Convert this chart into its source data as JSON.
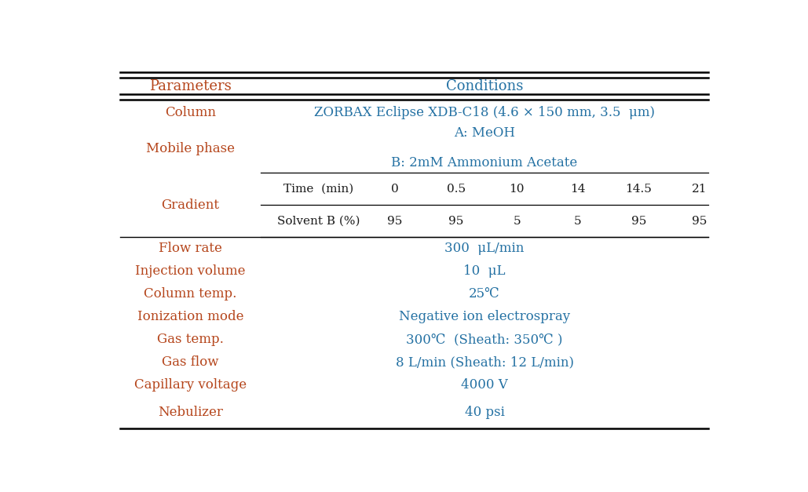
{
  "bg_color": "#ffffff",
  "param_color": "#b5451b",
  "cond_color": "#2471a3",
  "text_color": "#1a1a1a",
  "header_params": "Parameters",
  "header_cond": "Conditions",
  "rows": [
    {
      "param": "Column",
      "cond": "ZORBAX Eclipse XDB-C18 (4.6 × 150 mm, 3.5  μm)",
      "param_color": "#b5451b",
      "cond_color": "#2471a3"
    },
    {
      "param": "Mobile phase",
      "cond_line1": "A: MeOH",
      "cond_line2": "B: 2mM Ammonium Acetate",
      "param_color": "#b5451b",
      "cond_color": "#2471a3",
      "type": "multiline"
    },
    {
      "param": "Gradient",
      "type": "gradient",
      "param_color": "#b5451b"
    },
    {
      "param": "Flow rate",
      "cond": "300  μL/min",
      "param_color": "#b5451b",
      "cond_color": "#2471a3"
    },
    {
      "param": "Injection volume",
      "cond": "10  μL",
      "param_color": "#b5451b",
      "cond_color": "#2471a3"
    },
    {
      "param": "Column temp.",
      "cond": "25℃",
      "param_color": "#b5451b",
      "cond_color": "#2471a3"
    },
    {
      "param": "Ionization mode",
      "cond": "Negative ion electrospray",
      "param_color": "#b5451b",
      "cond_color": "#2471a3"
    },
    {
      "param": "Gas temp.",
      "cond": "300℃  (Sheath: 350℃ )",
      "param_color": "#b5451b",
      "cond_color": "#2471a3"
    },
    {
      "param": "Gas flow",
      "cond": "8 L/min (Sheath: 12 L/min)",
      "param_color": "#b5451b",
      "cond_color": "#2471a3"
    },
    {
      "param": "Capillary voltage",
      "cond": "4000 V",
      "param_color": "#b5451b",
      "cond_color": "#2471a3"
    },
    {
      "param": "Nebulizer",
      "cond": "40 psi",
      "param_color": "#b5451b",
      "cond_color": "#2471a3"
    }
  ],
  "gradient_time": [
    "Time  (min)",
    "0",
    "0.5",
    "10",
    "14",
    "14.5",
    "21"
  ],
  "gradient_solvent": [
    "Solvent B (%)",
    "95",
    "95",
    "5",
    "5",
    "95",
    "95"
  ],
  "figsize": [
    10.29,
    6.27
  ],
  "dpi": 100
}
